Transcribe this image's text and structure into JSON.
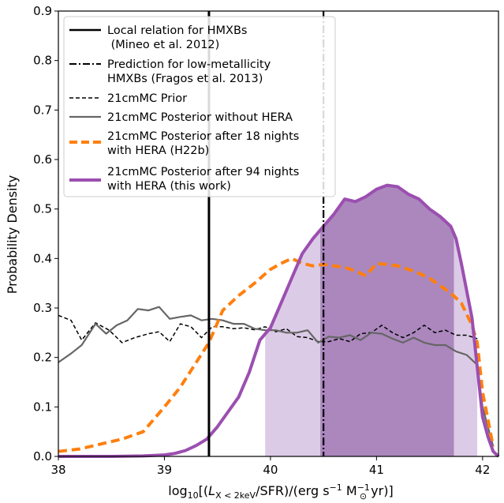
{
  "chart_data": {
    "type": "line",
    "xlabel_parts": {
      "prefix": "log",
      "log_sub": "10",
      "open": "[(",
      "L": "L",
      "L_sub": "X < 2keV",
      "mid": "/SFR)/(erg s",
      "exp1": "−1",
      "msun": " M",
      "msun_sub": "⊙",
      "exp2": "−1",
      "close": " yr)]"
    },
    "ylabel": "Probability Density",
    "xlim": [
      38.0,
      42.15
    ],
    "ylim": [
      0.0,
      0.9
    ],
    "xticks": [
      {
        "value": 38,
        "label": "38"
      },
      {
        "value": 39,
        "label": "39"
      },
      {
        "value": 40,
        "label": "40"
      },
      {
        "value": 41,
        "label": "41"
      },
      {
        "value": 42,
        "label": "42"
      }
    ],
    "yticks": [
      {
        "value": 0.0,
        "label": "0.0"
      },
      {
        "value": 0.1,
        "label": "0.1"
      },
      {
        "value": 0.2,
        "label": "0.2"
      },
      {
        "value": 0.3,
        "label": "0.3"
      },
      {
        "value": 0.4,
        "label": "0.4"
      },
      {
        "value": 0.5,
        "label": "0.5"
      },
      {
        "value": 0.6,
        "label": "0.6"
      },
      {
        "value": 0.7,
        "label": "0.7"
      },
      {
        "value": 0.8,
        "label": "0.8"
      },
      {
        "value": 0.9,
        "label": "0.9"
      }
    ],
    "grid": false,
    "legend_position": "top-left",
    "vertical_lines": [
      {
        "name": "local",
        "x": 39.42,
        "style": "solid"
      },
      {
        "name": "prediction",
        "x": 40.5,
        "style": "dashdot"
      }
    ],
    "shaded_regions": [
      {
        "name": "outer",
        "x_start": 39.95,
        "x_end": 41.95,
        "color": "#dccbe6"
      },
      {
        "name": "inner",
        "x_start": 40.47,
        "x_end": 41.73,
        "color": "#ab87bd"
      }
    ],
    "legend": [
      {
        "key": "local",
        "lines": [
          "Local relation for HMXBs",
          " (Mineo et al. 2012)"
        ]
      },
      {
        "key": "prediction",
        "lines": [
          "Prediction for low-metallicity",
          "HMXBs (Fragos et al. 2013)"
        ]
      },
      {
        "key": "prior",
        "lines": [
          "21cmMC Prior"
        ]
      },
      {
        "key": "without_hera",
        "lines": [
          "21cmMC Posterior without HERA"
        ]
      },
      {
        "key": "h22b",
        "lines": [
          "21cmMC Posterior after 18 nights",
          "with HERA (H22b)"
        ]
      },
      {
        "key": "this_work",
        "lines": [
          "21cmMC Posterior after 94 nights",
          "with HERA (this work)"
        ]
      }
    ],
    "series": [
      {
        "key": "prior",
        "color": "#000000",
        "style": "dashed",
        "x": [
          38.0,
          38.12,
          38.22,
          38.35,
          38.48,
          38.6,
          38.72,
          38.85,
          38.95,
          39.05,
          39.15,
          39.25,
          39.35,
          39.45,
          39.55,
          39.65,
          39.75,
          39.85,
          39.95,
          40.05,
          40.15,
          40.25,
          40.35,
          40.45,
          40.55,
          40.65,
          40.75,
          40.85,
          40.95,
          41.05,
          41.15,
          41.25,
          41.35,
          41.45,
          41.55,
          41.65,
          41.75,
          41.85,
          41.95
        ],
        "y": [
          0.285,
          0.275,
          0.235,
          0.27,
          0.255,
          0.23,
          0.24,
          0.248,
          0.252,
          0.232,
          0.268,
          0.262,
          0.24,
          0.262,
          0.262,
          0.258,
          0.26,
          0.256,
          0.262,
          0.252,
          0.258,
          0.242,
          0.24,
          0.232,
          0.232,
          0.238,
          0.232,
          0.248,
          0.25,
          0.265,
          0.25,
          0.24,
          0.25,
          0.265,
          0.25,
          0.255,
          0.245,
          0.245,
          0.238
        ]
      },
      {
        "key": "without_hera",
        "color": "#666666",
        "style": "solid",
        "x": [
          38.0,
          38.12,
          38.22,
          38.35,
          38.45,
          38.55,
          38.65,
          38.75,
          38.85,
          38.95,
          39.05,
          39.15,
          39.25,
          39.35,
          39.45,
          39.55,
          39.65,
          39.75,
          39.85,
          39.95,
          40.05,
          40.15,
          40.25,
          40.35,
          40.45,
          40.55,
          40.65,
          40.75,
          40.85,
          40.95,
          41.05,
          41.15,
          41.25,
          41.35,
          41.45,
          41.55,
          41.65,
          41.75,
          41.85,
          41.95,
          42.0,
          42.1
        ],
        "y": [
          0.19,
          0.208,
          0.225,
          0.268,
          0.248,
          0.265,
          0.275,
          0.298,
          0.295,
          0.302,
          0.278,
          0.282,
          0.285,
          0.275,
          0.278,
          0.275,
          0.268,
          0.268,
          0.258,
          0.255,
          0.255,
          0.25,
          0.25,
          0.255,
          0.23,
          0.242,
          0.24,
          0.245,
          0.235,
          0.25,
          0.248,
          0.238,
          0.23,
          0.24,
          0.23,
          0.225,
          0.225,
          0.212,
          0.205,
          0.185,
          0.1,
          0.02
        ]
      },
      {
        "key": "h22b",
        "color": "#ff7f0e",
        "style": "dashed",
        "x": [
          38.0,
          38.2,
          38.4,
          38.6,
          38.8,
          39.0,
          39.15,
          39.3,
          39.42,
          39.55,
          39.7,
          39.85,
          40.0,
          40.1,
          40.2,
          40.3,
          40.4,
          40.5,
          40.6,
          40.7,
          40.8,
          40.9,
          41.0,
          41.1,
          41.2,
          41.3,
          41.4,
          41.5,
          41.6,
          41.7,
          41.8,
          41.9,
          41.95,
          42.0,
          42.1
        ],
        "y": [
          0.01,
          0.015,
          0.025,
          0.035,
          0.05,
          0.1,
          0.14,
          0.19,
          0.23,
          0.295,
          0.325,
          0.35,
          0.378,
          0.39,
          0.4,
          0.39,
          0.385,
          0.388,
          0.385,
          0.382,
          0.375,
          0.365,
          0.39,
          0.388,
          0.385,
          0.378,
          0.37,
          0.36,
          0.345,
          0.33,
          0.31,
          0.265,
          0.23,
          0.13,
          0.02
        ]
      },
      {
        "key": "this_work",
        "color": "#9b4fb0",
        "style": "solid",
        "x": [
          38.0,
          38.5,
          38.8,
          39.0,
          39.1,
          39.2,
          39.3,
          39.4,
          39.5,
          39.6,
          39.7,
          39.8,
          39.9,
          40.0,
          40.1,
          40.2,
          40.3,
          40.4,
          40.5,
          40.6,
          40.7,
          40.8,
          40.9,
          41.0,
          41.1,
          41.2,
          41.3,
          41.4,
          41.5,
          41.6,
          41.7,
          41.75,
          41.8,
          41.9,
          42.0,
          42.05,
          42.1,
          42.15
        ],
        "y": [
          0.0,
          0.0,
          0.001,
          0.003,
          0.006,
          0.012,
          0.022,
          0.035,
          0.06,
          0.09,
          0.12,
          0.17,
          0.235,
          0.26,
          0.31,
          0.36,
          0.41,
          0.44,
          0.465,
          0.49,
          0.52,
          0.515,
          0.525,
          0.54,
          0.548,
          0.545,
          0.53,
          0.52,
          0.5,
          0.485,
          0.465,
          0.44,
          0.39,
          0.28,
          0.08,
          0.04,
          0.01,
          0.0
        ]
      }
    ]
  }
}
